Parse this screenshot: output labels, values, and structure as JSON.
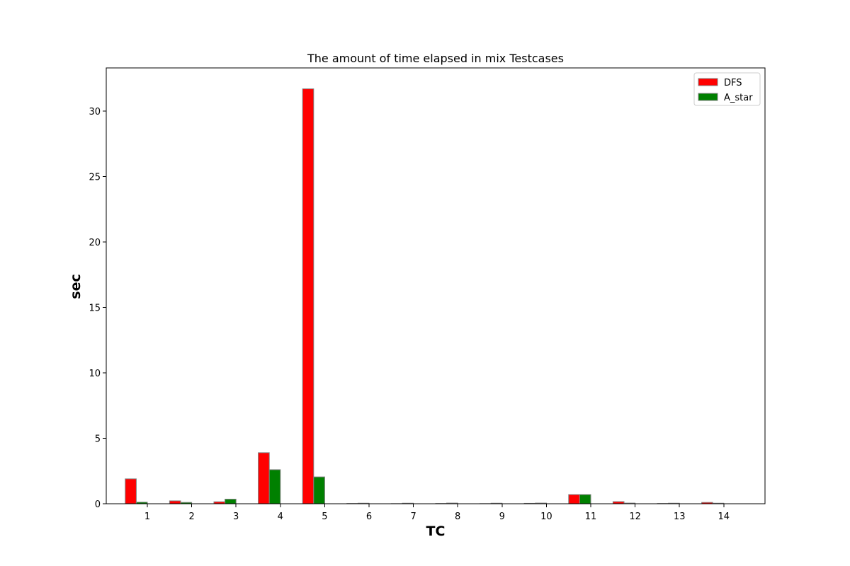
{
  "chart_data": {
    "type": "bar",
    "title": "The amount of time elapsed in mix Testcases",
    "xlabel": "TC",
    "ylabel": "sec",
    "categories": [
      "1",
      "2",
      "3",
      "4",
      "5",
      "6",
      "7",
      "8",
      "9",
      "10",
      "11",
      "12",
      "13",
      "14"
    ],
    "series": [
      {
        "name": "DFS",
        "color": "#ff0000",
        "values": [
          1.9,
          0.22,
          0.15,
          3.9,
          31.7,
          0.02,
          0.01,
          0.02,
          0.01,
          0.03,
          0.7,
          0.16,
          0.02,
          0.1
        ]
      },
      {
        "name": "A_star",
        "color": "#008000",
        "values": [
          0.12,
          0.1,
          0.35,
          2.6,
          2.05,
          0.04,
          0.04,
          0.05,
          0.04,
          0.05,
          0.7,
          0.05,
          0.04,
          0.04
        ]
      }
    ],
    "ylim": [
      0,
      33.3
    ],
    "yticks": [
      0,
      5,
      10,
      15,
      20,
      25,
      30
    ],
    "bar_edge_color": "#808080",
    "grid": false,
    "legend_position": "top-right"
  }
}
